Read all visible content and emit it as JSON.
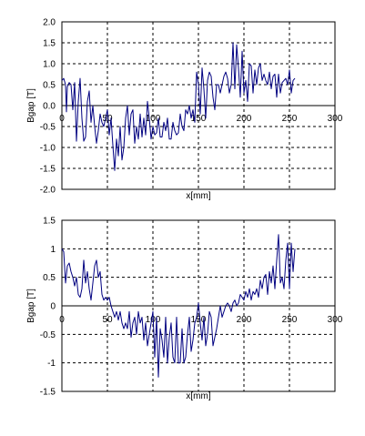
{
  "chart_data": [
    {
      "type": "line",
      "xlabel": "x[mm]",
      "ylabel": "Bgap [T]",
      "xlim": [
        0,
        300
      ],
      "ylim": [
        -2.0,
        2.0
      ],
      "x_ticks": [
        "0",
        "50",
        "100",
        "150",
        "200",
        "250",
        "300"
      ],
      "y_ticks": [
        "2.0",
        "1.5",
        "1.0",
        "0.5",
        "0.0",
        "-0.5",
        "-1.0",
        "-1.5",
        "-2.0"
      ],
      "y_tick_values": [
        2.0,
        1.5,
        1.0,
        0.5,
        0.0,
        -0.5,
        -1.0,
        -1.5,
        -2.0
      ],
      "grid": true,
      "line_color": "#000080",
      "series": [
        {
          "x": [
            0,
            2,
            4,
            5,
            6,
            8,
            10,
            12,
            14,
            16,
            18,
            20,
            22,
            24,
            26,
            28,
            30,
            32,
            34,
            36,
            38,
            40,
            42,
            44,
            46,
            48,
            50,
            52,
            54,
            56,
            58,
            60,
            62,
            64,
            66,
            68,
            70,
            72,
            74,
            76,
            78,
            80,
            82,
            84,
            86,
            88,
            90,
            92,
            94,
            96,
            98,
            100,
            102,
            104,
            106,
            108,
            110,
            112,
            114,
            116,
            118,
            120,
            122,
            124,
            126,
            128,
            130,
            132,
            134,
            136,
            138,
            140,
            142,
            144,
            146,
            148,
            150,
            152,
            154,
            156,
            158,
            160,
            162,
            164,
            166,
            168,
            170,
            172,
            174,
            176,
            178,
            180,
            182,
            184,
            186,
            188,
            190,
            192,
            194,
            196,
            198,
            200,
            202,
            204,
            206,
            208,
            210,
            212,
            214,
            216,
            218,
            220,
            222,
            224,
            226,
            228,
            230,
            232,
            234,
            236,
            238,
            240,
            242,
            244,
            246,
            248,
            250,
            252,
            254,
            256
          ],
          "y": [
            0.6,
            0.65,
            0.5,
            -0.15,
            0.45,
            0.55,
            0.5,
            -0.1,
            0.55,
            -0.85,
            0.1,
            0.65,
            -0.3,
            -0.85,
            -0.75,
            0.1,
            0.35,
            -0.4,
            0.0,
            -0.5,
            -0.9,
            -0.6,
            -0.2,
            -0.4,
            -0.5,
            -0.3,
            -0.1,
            -0.7,
            -0.3,
            -0.95,
            -1.55,
            -0.8,
            -1.2,
            -0.5,
            -1.3,
            -1.0,
            -0.3,
            0.0,
            -0.7,
            -0.2,
            -0.1,
            -0.9,
            -0.5,
            -0.8,
            -0.2,
            -0.75,
            -0.3,
            -0.7,
            0.1,
            -0.3,
            -0.8,
            -0.5,
            -0.7,
            -0.65,
            -0.3,
            -0.75,
            -0.75,
            -0.4,
            -0.6,
            -0.3,
            -0.8,
            -0.8,
            -0.4,
            -0.6,
            -0.7,
            -0.65,
            -0.2,
            -0.5,
            -0.6,
            -0.1,
            -0.2,
            0.0,
            -0.3,
            -0.1,
            -0.4,
            0.8,
            0.5,
            -0.2,
            0.9,
            0.4,
            -0.3,
            0.6,
            0.8,
            0.7,
            0.2,
            -0.1,
            0.5,
            0.5,
            0.3,
            0.5,
            0.7,
            0.8,
            0.65,
            0.3,
            0.5,
            1.5,
            0.4,
            1.45,
            0.9,
            0.2,
            1.3,
            0.3,
            0.6,
            0.1,
            1.0,
            0.95,
            0.3,
            0.85,
            0.5,
            0.9,
            1.0,
            0.6,
            0.75,
            0.6,
            0.5,
            0.8,
            0.4,
            0.7,
            0.75,
            0.2,
            0.75,
            0.3,
            0.55,
            0.6,
            0.65,
            0.5,
            0.85,
            0.3,
            0.6,
            0.65
          ]
        }
      ]
    },
    {
      "type": "line",
      "xlabel": "x[mm]",
      "ylabel": "Bgap [T]",
      "xlim": [
        0,
        300
      ],
      "ylim": [
        -1.5,
        1.5
      ],
      "x_ticks": [
        "0",
        "50",
        "100",
        "150",
        "200",
        "250",
        "300"
      ],
      "y_ticks": [
        "1.5",
        "1",
        "0.5",
        "0",
        "-0.5",
        "-1",
        "-1.5"
      ],
      "y_tick_values": [
        1.5,
        1.0,
        0.5,
        0.0,
        -0.5,
        -1.0,
        -1.5
      ],
      "grid": true,
      "line_color": "#000080",
      "series": [
        {
          "x": [
            0,
            2,
            4,
            6,
            8,
            10,
            12,
            14,
            16,
            18,
            20,
            22,
            24,
            26,
            28,
            30,
            32,
            34,
            36,
            38,
            40,
            42,
            44,
            46,
            48,
            50,
            52,
            54,
            56,
            58,
            60,
            62,
            64,
            66,
            68,
            70,
            72,
            74,
            76,
            78,
            80,
            82,
            84,
            86,
            88,
            90,
            92,
            94,
            96,
            98,
            100,
            102,
            104,
            106,
            108,
            110,
            112,
            114,
            116,
            118,
            120,
            122,
            124,
            126,
            128,
            130,
            132,
            134,
            136,
            138,
            140,
            142,
            144,
            146,
            148,
            150,
            152,
            154,
            156,
            158,
            160,
            162,
            164,
            166,
            168,
            170,
            172,
            174,
            176,
            178,
            180,
            182,
            184,
            186,
            188,
            190,
            192,
            194,
            196,
            198,
            200,
            202,
            204,
            206,
            208,
            210,
            212,
            214,
            216,
            218,
            220,
            222,
            224,
            226,
            228,
            230,
            232,
            234,
            236,
            238,
            240,
            242,
            244,
            246,
            248,
            250,
            252,
            254,
            256
          ],
          "y": [
            1.0,
            0.95,
            0.4,
            0.7,
            0.75,
            0.6,
            0.5,
            0.35,
            0.5,
            0.2,
            0.15,
            0.3,
            0.8,
            0.4,
            0.6,
            0.3,
            0.1,
            0.4,
            0.7,
            0.8,
            0.5,
            0.6,
            0.2,
            0.1,
            0.15,
            0.1,
            0.15,
            0.0,
            -0.1,
            -0.2,
            -0.1,
            -0.25,
            -0.1,
            -0.3,
            -0.4,
            -0.3,
            -0.4,
            -0.1,
            -0.55,
            -0.3,
            -0.2,
            -0.5,
            -0.1,
            -0.3,
            -0.2,
            -0.6,
            -0.3,
            -0.7,
            -0.5,
            -0.3,
            -0.1,
            -0.9,
            -0.2,
            -1.25,
            -0.4,
            -0.6,
            -0.9,
            -0.2,
            -1.0,
            -0.55,
            -0.3,
            -0.9,
            -1.0,
            -0.2,
            -1.0,
            -1.0,
            -0.4,
            -1.0,
            -0.9,
            -0.5,
            -0.2,
            -0.8,
            -0.6,
            -0.3,
            -0.2,
            0.05,
            -0.3,
            -0.6,
            -0.2,
            -0.7,
            -0.5,
            -0.1,
            -0.2,
            -0.7,
            -0.55,
            -0.4,
            -0.2,
            0.0,
            -0.2,
            -0.1,
            0.0,
            0.05,
            0.0,
            -0.1,
            0.05,
            0.1,
            0.0,
            0.05,
            0.2,
            0.15,
            0.1,
            0.25,
            0.15,
            0.3,
            0.1,
            0.25,
            0.2,
            0.3,
            0.15,
            0.45,
            0.3,
            0.5,
            0.55,
            0.2,
            0.6,
            0.4,
            0.7,
            0.3,
            0.8,
            1.25,
            0.4,
            0.5,
            0.3,
            0.8,
            1.1,
            0.3,
            1.1,
            0.6,
            1.0
          ]
        }
      ]
    }
  ]
}
